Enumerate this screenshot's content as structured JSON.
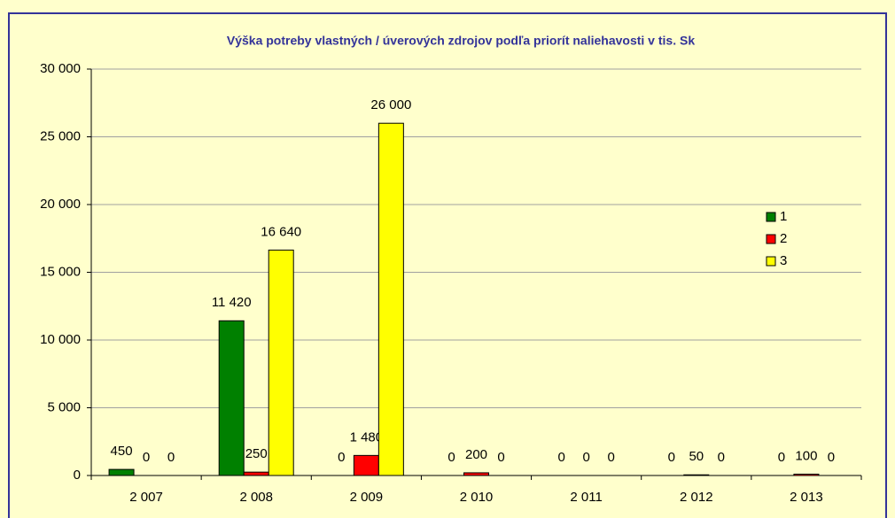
{
  "chart_data": {
    "type": "bar",
    "title": "Výška potreby vlastných / úverových zdrojov podľa priorít naliehavosti v tis. Sk",
    "categories": [
      "2 007",
      "2 008",
      "2 009",
      "2 010",
      "2 011",
      "2 012",
      "2 013"
    ],
    "series": [
      {
        "name": "1",
        "color": "#008000",
        "values": [
          450,
          11420,
          0,
          0,
          0,
          0,
          0
        ],
        "value_labels": [
          "450",
          "11 420",
          "0",
          "0",
          "0",
          "0",
          "0"
        ]
      },
      {
        "name": "2",
        "color": "#ff0000",
        "values": [
          0,
          250,
          1480,
          200,
          0,
          50,
          100
        ],
        "value_labels": [
          "0",
          "250",
          "1 480",
          "200",
          "0",
          "50",
          "100"
        ]
      },
      {
        "name": "3",
        "color": "#ffff00",
        "values": [
          0,
          16640,
          26000,
          0,
          0,
          0,
          0
        ],
        "value_labels": [
          "0",
          "16 640",
          "26 000",
          "0",
          "0",
          "0",
          "0"
        ]
      }
    ],
    "ylim": [
      0,
      30000
    ],
    "yticks": [
      0,
      {
        "value": 5000,
        "label": "5 000"
      },
      {
        "value": 10000,
        "label": "10 000"
      },
      {
        "value": 15000,
        "label": "15 000"
      },
      {
        "value": 20000,
        "label": "20 000"
      },
      {
        "value": 25000,
        "label": "25 000"
      },
      {
        "value": 30000,
        "label": "30 000"
      }
    ],
    "grid": true,
    "legend": "right"
  }
}
